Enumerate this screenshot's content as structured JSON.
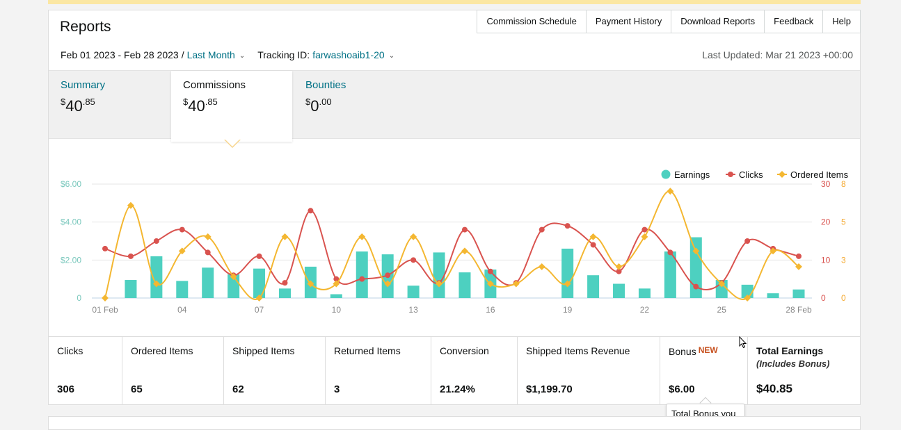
{
  "header": {
    "title": "Reports",
    "tabs": [
      "Commission Schedule",
      "Payment History",
      "Download Reports",
      "Feedback",
      "Help"
    ],
    "date_range": "Feb 01 2023 - Feb 28 2023",
    "date_separator": "/",
    "range_preset": "Last Month",
    "tracking_label": "Tracking ID:",
    "tracking_id": "farwashoaib1-20",
    "last_updated": "Last Updated: Mar 21 2023 +00:00"
  },
  "summary_tabs": [
    {
      "label": "Summary",
      "currency": "$",
      "whole": "40",
      "cents": ".85"
    },
    {
      "label": "Commissions",
      "currency": "$",
      "whole": "40",
      "cents": ".85"
    },
    {
      "label": "Bounties",
      "currency": "$",
      "whole": "0",
      "cents": ".00"
    }
  ],
  "colors": {
    "earnings": "#4dd0c0",
    "clicks": "#d9534f",
    "ordered_items": "#f4b731",
    "link": "#007185",
    "new_badge": "#c7511f"
  },
  "chart_data": {
    "type": "bar",
    "categories": [
      "01 Feb",
      "02",
      "03",
      "04",
      "05",
      "06",
      "07",
      "08",
      "09",
      "10",
      "11",
      "12",
      "13",
      "14",
      "15",
      "16",
      "17",
      "18",
      "19",
      "20",
      "21",
      "22",
      "23",
      "24",
      "25",
      "26",
      "27",
      "28 Feb"
    ],
    "x_tick_labels": [
      "01 Feb",
      "04",
      "07",
      "10",
      "13",
      "16",
      "19",
      "22",
      "25",
      "28 Feb"
    ],
    "y_left_ticks": [
      "$6.00",
      "$4.00",
      "$2.00",
      "0"
    ],
    "y_left_lim": [
      0,
      6
    ],
    "y_right1_ticks": [
      "30",
      "20",
      "10",
      "0"
    ],
    "y_right1_lim": [
      0,
      30
    ],
    "y_right2_ticks": [
      "8",
      "5",
      "3",
      "0"
    ],
    "y_right2_lim": [
      0,
      8
    ],
    "grid": true,
    "legend_position": "top-right",
    "series": [
      {
        "name": "Earnings",
        "type": "bar",
        "axis": "left",
        "values": [
          0,
          0.95,
          2.2,
          0.9,
          1.6,
          1.25,
          1.55,
          0.5,
          1.65,
          0.2,
          2.45,
          2.3,
          0.65,
          2.4,
          1.35,
          1.5,
          0,
          0,
          2.6,
          1.2,
          0.75,
          0.5,
          2.45,
          3.2,
          0.95,
          0.7,
          0.25,
          0.45
        ]
      },
      {
        "name": "Clicks",
        "type": "line",
        "axis": "right1",
        "values": [
          13,
          11,
          15,
          18,
          12,
          6,
          11,
          4,
          23,
          5,
          5,
          6,
          10,
          4,
          18,
          7,
          4,
          18,
          19,
          14,
          7,
          18,
          12,
          3,
          4,
          15,
          13,
          11
        ]
      },
      {
        "name": "Ordered Items",
        "type": "line",
        "axis": "right2",
        "values": [
          0,
          6.5,
          1,
          3.3,
          4.3,
          1.5,
          0,
          4.3,
          1,
          1,
          4.3,
          1,
          4.3,
          1,
          3.3,
          1,
          1,
          2.2,
          1,
          4.3,
          2.2,
          4.3,
          7.5,
          3.3,
          1,
          0,
          3.3,
          2.2
        ]
      }
    ]
  },
  "metrics": [
    {
      "label": "Clicks",
      "value": "306"
    },
    {
      "label": "Ordered Items",
      "value": "65"
    },
    {
      "label": "Shipped Items",
      "value": "62"
    },
    {
      "label": "Returned Items",
      "value": "3"
    },
    {
      "label": "Conversion",
      "value": "21.24%"
    },
    {
      "label": "Shipped Items Revenue",
      "value": "$1,199.70"
    },
    {
      "label": "Bonus",
      "badge": "NEW",
      "value": "$6.00"
    },
    {
      "label": "Total Earnings",
      "sublabel": "(Includes Bonus)",
      "value": "$40.85"
    }
  ],
  "tooltip": "Total Bonus you"
}
